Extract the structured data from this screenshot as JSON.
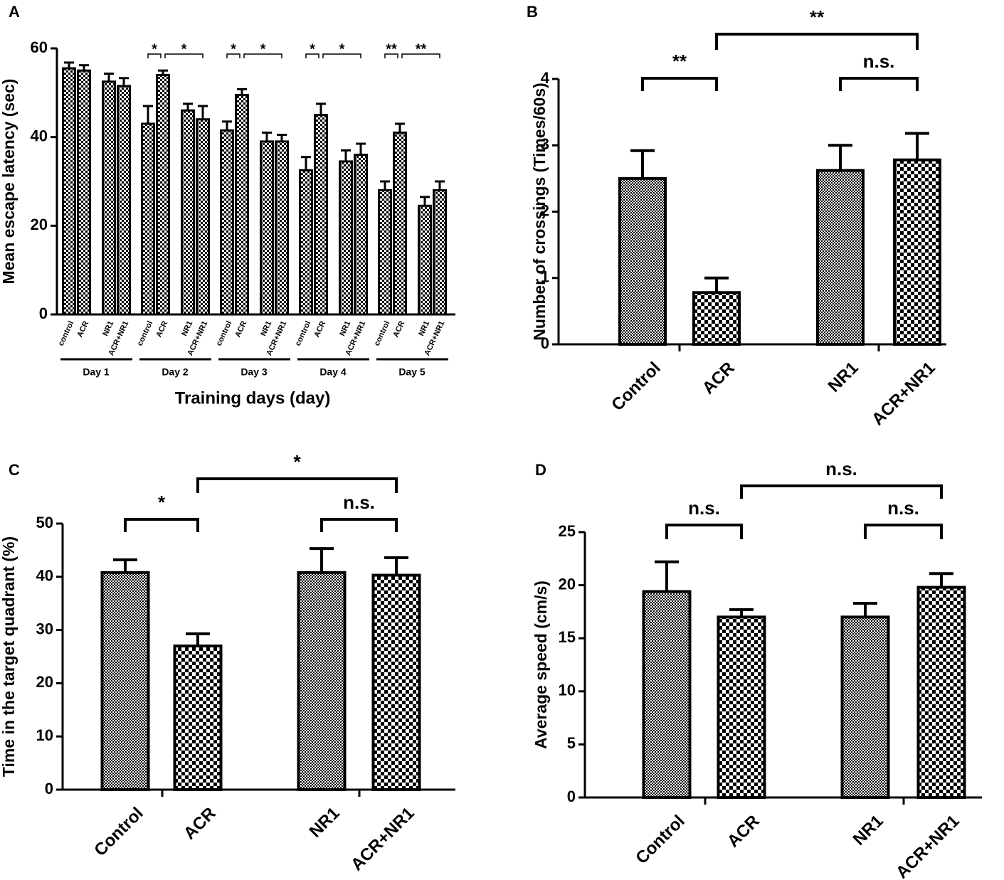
{
  "chart_data": [
    {
      "panel": "A",
      "type": "grouped-bar",
      "ylabel": "Mean escape latency (sec)",
      "xlabel": "Training days (day)",
      "categories": [
        "Day 1",
        "Day 2",
        "Day 3",
        "Day 4",
        "Day 5"
      ],
      "series": [
        {
          "name": "control",
          "color": "#000000",
          "values": [
            55.5,
            43,
            41.5,
            32.5,
            28
          ],
          "errors": [
            1.3,
            4,
            2,
            3,
            2
          ]
        },
        {
          "name": "ACR",
          "color": "#000000",
          "values": [
            55,
            54,
            49.5,
            45,
            41
          ],
          "errors": [
            1.2,
            1,
            1.3,
            2.5,
            2
          ]
        },
        {
          "name": "NR1",
          "color": "#000000",
          "values": [
            52.5,
            46,
            39,
            34.5,
            24.5
          ],
          "errors": [
            1.8,
            1.5,
            2,
            2.5,
            2
          ]
        },
        {
          "name": "ACR+NR1",
          "color": "#000000",
          "values": [
            51.5,
            44,
            39,
            36,
            28
          ],
          "errors": [
            1.8,
            3,
            1.5,
            2.5,
            2
          ]
        }
      ],
      "ylim": [
        0,
        60
      ],
      "yticks": [
        0,
        20,
        40,
        60
      ],
      "annotations": [
        "*",
        "*",
        "*",
        "*",
        "*",
        "*",
        "**",
        "**"
      ]
    },
    {
      "panel": "B",
      "type": "bar",
      "ylabel": "Number of crossings (Times/60s)",
      "categories": [
        "Control",
        "ACR",
        "NR1",
        "ACR+NR1"
      ],
      "color": "#000000",
      "values": [
        2.5,
        0.78,
        2.62,
        2.78
      ],
      "errors": [
        0.42,
        0.22,
        0.38,
        0.4
      ],
      "ylim": [
        0,
        4
      ],
      "yticks": [
        0,
        1,
        2,
        3,
        4
      ],
      "annotations": [
        "**",
        "n.s.",
        "**"
      ]
    },
    {
      "panel": "C",
      "type": "bar",
      "ylabel": "Time in the target quadrant (%)",
      "categories": [
        "Control",
        "ACR",
        "NR1",
        "ACR+NR1"
      ],
      "color": "#000000",
      "values": [
        40.8,
        27,
        40.8,
        40.3
      ],
      "errors": [
        2.4,
        2.3,
        4.5,
        3.3
      ],
      "ylim": [
        0,
        50
      ],
      "yticks": [
        0,
        10,
        20,
        30,
        40,
        50
      ],
      "annotations": [
        "*",
        "n.s.",
        "*"
      ]
    },
    {
      "panel": "D",
      "type": "bar",
      "ylabel": "Average speed (cm/s)",
      "categories": [
        "Control",
        "ACR",
        "NR1",
        "ACR+NR1"
      ],
      "color": "#000000",
      "values": [
        19.4,
        17,
        17,
        19.8
      ],
      "errors": [
        2.8,
        0.7,
        1.3,
        1.3
      ],
      "ylim": [
        0,
        25
      ],
      "yticks": [
        0,
        5,
        10,
        15,
        20,
        25
      ],
      "annotations": [
        "n.s.",
        "n.s.",
        "n.s."
      ]
    }
  ]
}
